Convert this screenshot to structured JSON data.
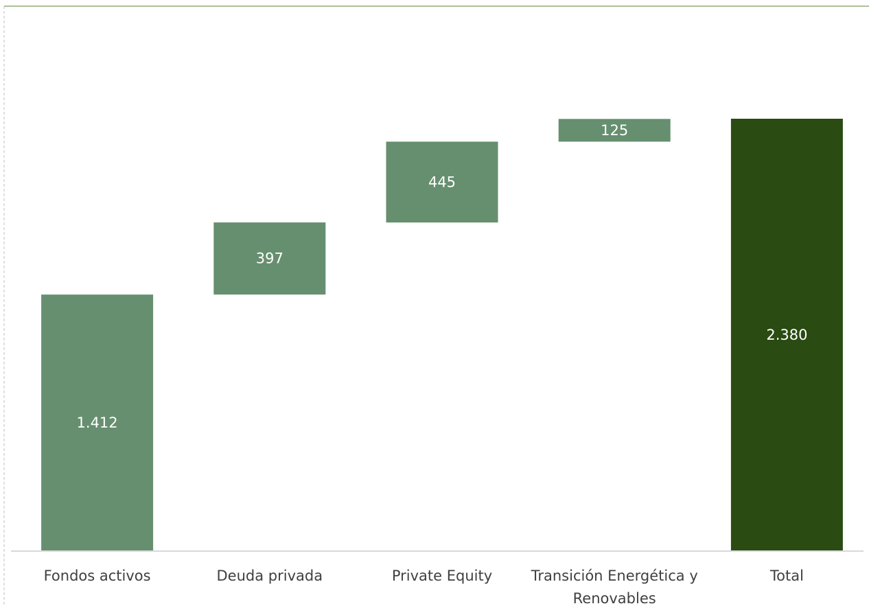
{
  "chart_data": {
    "type": "bar",
    "subtype": "waterfall",
    "title": "",
    "xlabel": "",
    "ylabel": "",
    "categories": [
      "Fondos activos",
      "Deuda privada",
      "Private Equity",
      "Transición Energética y Renovables",
      "Total"
    ],
    "category_lines": [
      [
        "Fondos activos"
      ],
      [
        "Deuda privada"
      ],
      [
        "Private Equity"
      ],
      [
        "Transición Energética y",
        "Renovables"
      ],
      [
        "Total"
      ]
    ],
    "values": [
      1412,
      397,
      445,
      125,
      2380
    ],
    "value_labels": [
      "1.412",
      "397",
      "445",
      "125",
      "2.380"
    ],
    "bar_kinds": [
      "increase",
      "increase",
      "increase",
      "increase",
      "total"
    ],
    "ylim": [
      0,
      2600
    ],
    "grid": false,
    "legend": "none",
    "colors": {
      "increase": "#668f6f",
      "total": "#2a4b12",
      "axis": "#d9d9d9",
      "top_border": "#548235",
      "left_border": "#bfbfbf"
    }
  }
}
